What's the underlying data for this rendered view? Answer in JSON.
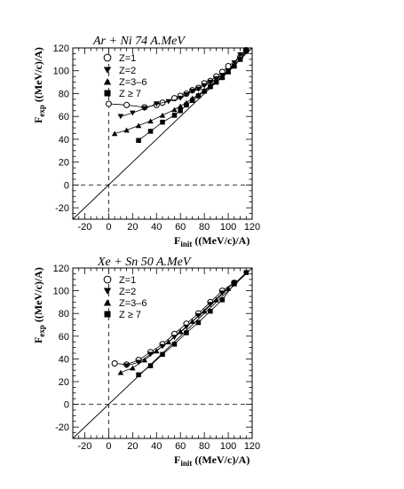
{
  "chart_data": [
    {
      "type": "line",
      "title": "Ar + Ni 74 A.MeV",
      "xlabel": "F",
      "xlabel_sub": "init",
      "xlabel_unit": "((MeV/c)/A)",
      "ylabel": "F",
      "ylabel_sub": "exp",
      "ylabel_unit": "((MeV/c)/A)",
      "xlim": [
        -30,
        120
      ],
      "ylim": [
        -30,
        120
      ],
      "xticks": [
        "-20",
        "0",
        "20",
        "40",
        "60",
        "80",
        "100",
        "120"
      ],
      "yticks": [
        "-20",
        "0",
        "20",
        "40",
        "60",
        "80",
        "100",
        "120"
      ],
      "legend_position": "upper-left",
      "series": [
        {
          "name": "Z=1",
          "marker": "open-circle",
          "x": [
            0,
            15,
            30,
            40,
            45,
            55,
            60,
            65,
            70,
            75,
            80,
            85,
            90,
            95,
            100,
            110,
            115
          ],
          "y": [
            71,
            70,
            68,
            70,
            72,
            76,
            78,
            80,
            83,
            85,
            89,
            91,
            95,
            99,
            104,
            112,
            118
          ]
        },
        {
          "name": "Z=2",
          "marker": "filled-down-triangle",
          "x": [
            10,
            20,
            30,
            40,
            50,
            60,
            65,
            70,
            75,
            80,
            85,
            90,
            95,
            100,
            105,
            110,
            115
          ],
          "y": [
            60,
            63,
            67,
            71,
            73,
            76,
            79,
            82,
            84,
            87,
            90,
            93,
            96,
            100,
            107,
            114,
            118
          ]
        },
        {
          "name": "Z=3–6",
          "marker": "filled-triangle",
          "x": [
            5,
            15,
            25,
            35,
            45,
            55,
            60,
            65,
            70,
            75,
            80,
            85,
            90,
            95,
            100,
            105,
            110,
            115
          ],
          "y": [
            45,
            48,
            52,
            56,
            61,
            66,
            69,
            72,
            76,
            79,
            83,
            87,
            91,
            95,
            100,
            105,
            110,
            118
          ]
        },
        {
          "name": "Z ≥ 7",
          "marker": "filled-square",
          "x": [
            25,
            35,
            45,
            55,
            60,
            65,
            70,
            75,
            80,
            85,
            90,
            95,
            100,
            105,
            110,
            115
          ],
          "y": [
            39,
            47,
            55,
            61,
            65,
            70,
            74,
            78,
            82,
            86,
            90,
            94,
            99,
            104,
            110,
            117
          ]
        }
      ]
    },
    {
      "type": "line",
      "title": "Xe + Sn 50 A.MeV",
      "xlabel": "F",
      "xlabel_sub": "init",
      "xlabel_unit": "((MeV/c)/A)",
      "ylabel": "F",
      "ylabel_sub": "exp",
      "ylabel_unit": "((MeV/c)/A)",
      "xlim": [
        -30,
        120
      ],
      "ylim": [
        -30,
        120
      ],
      "xticks": [
        "-20",
        "0",
        "20",
        "40",
        "60",
        "80",
        "100",
        "120"
      ],
      "yticks": [
        "-20",
        "0",
        "20",
        "40",
        "60",
        "80",
        "100",
        "120"
      ],
      "legend_position": "upper-left",
      "series": [
        {
          "name": "Z=1",
          "marker": "open-circle",
          "x": [
            5,
            15,
            25,
            35,
            45,
            55,
            65,
            75,
            85,
            95,
            105
          ],
          "y": [
            36,
            35,
            39,
            46,
            53,
            62,
            71,
            80,
            90,
            100,
            107
          ]
        },
        {
          "name": "Z=2",
          "marker": "filled-down-triangle",
          "x": [
            15,
            25,
            35,
            45,
            55,
            65,
            75,
            85,
            95,
            105
          ],
          "y": [
            34,
            37,
            44,
            51,
            59,
            68,
            78,
            88,
            98,
            107
          ]
        },
        {
          "name": "Z=3–6",
          "marker": "filled-triangle",
          "x": [
            10,
            20,
            30,
            40,
            50,
            60,
            70,
            80,
            90,
            100
          ],
          "y": [
            28,
            32,
            39,
            47,
            55,
            64,
            73,
            82,
            92,
            102
          ]
        },
        {
          "name": "Z ≥ 7",
          "marker": "filled-square",
          "x": [
            25,
            35,
            45,
            55,
            65,
            75,
            85,
            95,
            105,
            115
          ],
          "y": [
            26,
            34,
            44,
            53,
            63,
            72,
            82,
            92,
            106,
            116
          ]
        }
      ]
    }
  ]
}
